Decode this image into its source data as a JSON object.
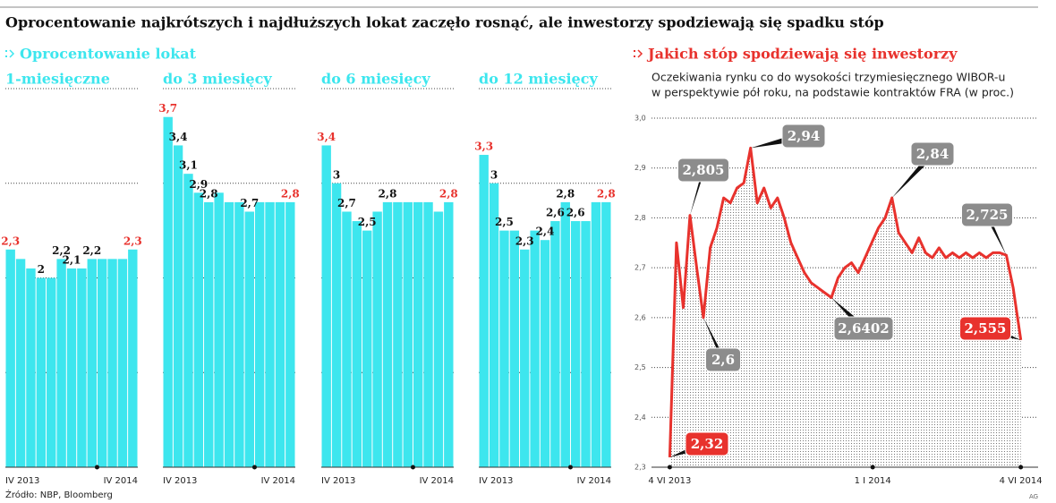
{
  "title": "Oprocentowanie najkrótszych i najdłuższych lokat zaczęło rosnąć, ale inwestorzy spodziewają się spadku stóp",
  "sections": [
    "Oprocentowanie lokat",
    "Jakich stóp spodziewają się inwestorzy"
  ],
  "source": "Źródło: NBP, Bloomberg",
  "credit": "AG",
  "chart_data": [
    {
      "type": "bar",
      "title": "1-miesięczne",
      "color": "#3de6ee",
      "ylim": [
        0,
        4
      ],
      "yticks": [
        1,
        2,
        3,
        4
      ],
      "grid": true,
      "categories": [
        "IV 2013",
        null,
        null,
        null,
        null,
        null,
        null,
        null,
        null,
        null,
        null,
        null,
        "IV 2014"
      ],
      "values": [
        2.3,
        2.2,
        2.1,
        2.0,
        2.0,
        2.2,
        2.1,
        2.1,
        2.2,
        2.2,
        2.2,
        2.2,
        2.3
      ],
      "value_labels": [
        "2,3",
        null,
        null,
        "2",
        null,
        "2,2",
        "2,1",
        null,
        "2,2",
        null,
        null,
        null,
        "2,3"
      ]
    },
    {
      "type": "bar",
      "title": "do 3 miesięcy",
      "color": "#3de6ee",
      "ylim": [
        0,
        4
      ],
      "yticks": [
        1,
        2,
        3,
        4
      ],
      "grid": true,
      "categories": [
        "IV 2013",
        null,
        null,
        null,
        null,
        null,
        null,
        null,
        null,
        null,
        null,
        null,
        "IV 2014"
      ],
      "values": [
        3.7,
        3.4,
        3.1,
        2.9,
        2.8,
        2.9,
        2.8,
        2.8,
        2.7,
        2.8,
        2.8,
        2.8,
        2.8
      ],
      "value_labels": [
        "3,7",
        "3,4",
        "3,1",
        "2,9",
        "2,8",
        null,
        null,
        null,
        "2,7",
        null,
        null,
        null,
        "2,8"
      ]
    },
    {
      "type": "bar",
      "title": "do 6 miesięcy",
      "color": "#3de6ee",
      "ylim": [
        0,
        4
      ],
      "yticks": [
        1,
        2,
        3,
        4
      ],
      "grid": true,
      "categories": [
        "IV 2013",
        null,
        null,
        null,
        null,
        null,
        null,
        null,
        null,
        null,
        null,
        null,
        "IV 2014"
      ],
      "values": [
        3.4,
        3.0,
        2.7,
        2.6,
        2.5,
        2.7,
        2.8,
        2.8,
        2.8,
        2.8,
        2.8,
        2.7,
        2.8
      ],
      "value_labels": [
        "3,4",
        "3",
        "2,7",
        null,
        "2,5",
        null,
        "2,8",
        null,
        null,
        null,
        null,
        null,
        "2,8"
      ]
    },
    {
      "type": "bar",
      "title": "do 12 miesięcy",
      "color": "#3de6ee",
      "ylim": [
        0,
        4
      ],
      "yticks": [
        1,
        2,
        3,
        4
      ],
      "grid": true,
      "categories": [
        "IV 2013",
        null,
        null,
        null,
        null,
        null,
        null,
        null,
        null,
        null,
        null,
        null,
        "IV 2014"
      ],
      "values": [
        3.3,
        3.0,
        2.5,
        2.5,
        2.3,
        2.5,
        2.4,
        2.6,
        2.8,
        2.6,
        2.6,
        2.8,
        2.8
      ],
      "value_labels": [
        "3,3",
        "3",
        "2,5",
        null,
        "2,3",
        null,
        "2,4",
        "2,6",
        "2,8",
        "2,6",
        null,
        null,
        "2,8"
      ]
    },
    {
      "type": "line",
      "subtitle": [
        "Oczekiwania rynku co do wysokości trzymiesięcznego WIBOR-u",
        "w perspektywie pół roku, na podstawie kontraktów FRA (w proc.)"
      ],
      "color": "#e8322d",
      "grid": true,
      "xlim": [
        "2013-05-16",
        "2014-06-22"
      ],
      "xticks": [
        {
          "value": "2013-06-04",
          "label": "4 VI 2013"
        },
        {
          "value": "2014-01-01",
          "label": "1 I 2014"
        },
        {
          "value": "2014-06-04",
          "label": "4 VI 2014"
        }
      ],
      "ylim": [
        2.3,
        3.0
      ],
      "yticks": [
        {
          "value": 2.3,
          "label": "2,3"
        },
        {
          "value": 2.4,
          "label": "2,4"
        },
        {
          "value": 2.5,
          "label": "2,5"
        },
        {
          "value": 2.6,
          "label": "2,6"
        },
        {
          "value": 2.7,
          "label": "2,7"
        },
        {
          "value": 2.8,
          "label": "2,8"
        },
        {
          "value": 2.9,
          "label": "2,9"
        },
        {
          "value": 3.0,
          "label": "3,0"
        }
      ],
      "x": [
        "2013-06-04",
        "2013-06-11",
        "2013-06-18",
        "2013-06-25",
        "2013-07-02",
        "2013-07-09",
        "2013-07-16",
        "2013-07-23",
        "2013-07-30",
        "2013-08-06",
        "2013-08-13",
        "2013-08-20",
        "2013-08-27",
        "2013-09-03",
        "2013-09-10",
        "2013-09-17",
        "2013-09-24",
        "2013-10-01",
        "2013-10-08",
        "2013-10-15",
        "2013-10-22",
        "2013-10-29",
        "2013-11-05",
        "2013-11-12",
        "2013-11-19",
        "2013-11-26",
        "2013-12-03",
        "2013-12-10",
        "2013-12-17",
        "2013-12-24",
        "2013-12-31",
        "2014-01-07",
        "2014-01-14",
        "2014-01-21",
        "2014-01-28",
        "2014-02-04",
        "2014-02-11",
        "2014-02-18",
        "2014-02-25",
        "2014-03-04",
        "2014-03-11",
        "2014-03-18",
        "2014-03-25",
        "2014-04-01",
        "2014-04-08",
        "2014-04-15",
        "2014-04-22",
        "2014-04-29",
        "2014-05-06",
        "2014-05-13",
        "2014-05-20",
        "2014-05-27",
        "2014-06-04"
      ],
      "values": [
        2.32,
        2.75,
        2.62,
        2.805,
        2.7,
        2.6,
        2.74,
        2.78,
        2.84,
        2.83,
        2.86,
        2.87,
        2.94,
        2.83,
        2.86,
        2.82,
        2.84,
        2.8,
        2.75,
        2.72,
        2.69,
        2.67,
        2.66,
        2.65,
        2.6402,
        2.68,
        2.7,
        2.71,
        2.69,
        2.72,
        2.75,
        2.78,
        2.8,
        2.84,
        2.77,
        2.75,
        2.73,
        2.76,
        2.73,
        2.72,
        2.74,
        2.72,
        2.73,
        2.72,
        2.73,
        2.72,
        2.73,
        2.72,
        2.73,
        2.73,
        2.725,
        2.66,
        2.555
      ],
      "annotations": [
        {
          "x": "2013-06-04",
          "value": 2.32,
          "label": "2,32",
          "color": "#e8322d"
        },
        {
          "x": "2013-06-25",
          "value": 2.805,
          "label": "2,805",
          "color": "#8c8c8c"
        },
        {
          "x": "2013-07-09",
          "value": 2.6,
          "label": "2,6",
          "color": "#8c8c8c"
        },
        {
          "x": "2013-08-27",
          "value": 2.94,
          "label": "2,94",
          "color": "#8c8c8c"
        },
        {
          "x": "2013-11-19",
          "value": 2.6402,
          "label": "2,6402",
          "color": "#8c8c8c"
        },
        {
          "x": "2014-01-21",
          "value": 2.84,
          "label": "2,84",
          "color": "#8c8c8c"
        },
        {
          "x": "2014-05-20",
          "value": 2.725,
          "label": "2,725",
          "color": "#8c8c8c"
        },
        {
          "x": "2014-06-04",
          "value": 2.555,
          "label": "2,555",
          "color": "#e8322d"
        }
      ]
    }
  ]
}
